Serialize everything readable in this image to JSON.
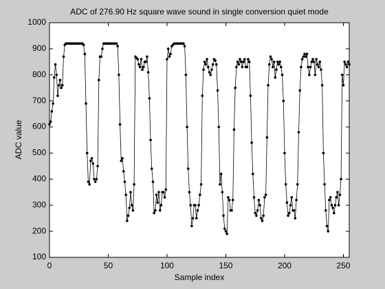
{
  "chart_data": {
    "type": "line",
    "title": "ADC of 276.90 Hz square wave sound in single conversion quiet mode",
    "x_label": "Sample index",
    "y_label": "ADC value",
    "xlim": [
      0,
      255
    ],
    "ylim": [
      100,
      1000
    ],
    "xticks": [
      0,
      50,
      100,
      150,
      200,
      250
    ],
    "yticks": [
      100,
      200,
      300,
      400,
      500,
      600,
      700,
      800,
      900,
      1000
    ],
    "grid": false,
    "series": [
      {
        "color": "#000000",
        "values": [
          610,
          620,
          660,
          690,
          790,
          840,
          800,
          720,
          760,
          780,
          750,
          760,
          870,
          915,
          920,
          920,
          920,
          920,
          920,
          920,
          920,
          920,
          920,
          920,
          920,
          920,
          920,
          920,
          920,
          915,
          880,
          690,
          500,
          390,
          380,
          470,
          480,
          460,
          400,
          390,
          400,
          450,
          780,
          870,
          870,
          900,
          920,
          920,
          920,
          920,
          920,
          920,
          920,
          920,
          920,
          920,
          920,
          920,
          910,
          800,
          610,
          470,
          480,
          430,
          390,
          340,
          240,
          260,
          290,
          350,
          300,
          280,
          380,
          870,
          865,
          860,
          840,
          830,
          860,
          820,
          830,
          850,
          850,
          870,
          810,
          710,
          550,
          440,
          390,
          270,
          280,
          340,
          310,
          350,
          280,
          300,
          350,
          350,
          330,
          360,
          860,
          900,
          870,
          880,
          910,
          915,
          920,
          920,
          920,
          920,
          920,
          920,
          920,
          920,
          920,
          910,
          800,
          600,
          440,
          350,
          300,
          220,
          250,
          300,
          300,
          250,
          280,
          300,
          340,
          380,
          720,
          820,
          850,
          840,
          860,
          830,
          810,
          800,
          820,
          840,
          860,
          855,
          840,
          740,
          600,
          380,
          420,
          350,
          260,
          210,
          200,
          190,
          330,
          320,
          280,
          280,
          320,
          590,
          750,
          830,
          850,
          840,
          860,
          850,
          830,
          850,
          860,
          830,
          830,
          860,
          850,
          720,
          540,
          420,
          330,
          270,
          260,
          280,
          320,
          300,
          250,
          240,
          260,
          330,
          340,
          560,
          760,
          840,
          870,
          860,
          830,
          850,
          790,
          820,
          850,
          840,
          850,
          830,
          800,
          700,
          500,
          380,
          310,
          260,
          270,
          300,
          330,
          280,
          280,
          250,
          320,
          380,
          580,
          740,
          830,
          860,
          870,
          880,
          870,
          880,
          830,
          800,
          830,
          850,
          860,
          850,
          800,
          860,
          840,
          830,
          850,
          820,
          760,
          500,
          380,
          280,
          220,
          200,
          320,
          330,
          300,
          290,
          270,
          300,
          330,
          350,
          300,
          340,
          400,
          800,
          760,
          850,
          840,
          830,
          850,
          840
        ]
      }
    ]
  }
}
